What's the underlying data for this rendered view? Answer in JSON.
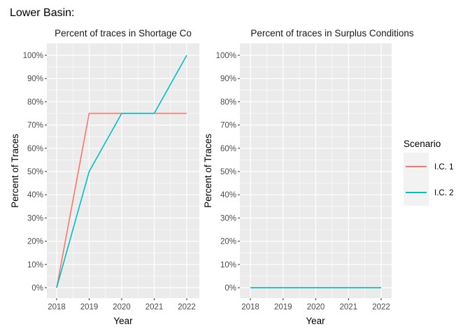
{
  "page_title": "Lower Basin:",
  "legend": {
    "title": "Scenario",
    "items": [
      {
        "label": "I.C. 1",
        "color": "#f8766d"
      },
      {
        "label": "I.C. 2",
        "color": "#00bfc4"
      }
    ]
  },
  "chart_data": [
    {
      "type": "line",
      "title": "Percent of traces in Shortage Co",
      "xlabel": "Year",
      "ylabel": "Percent of Traces",
      "x": [
        "2018",
        "2019",
        "2020",
        "2021",
        "2022"
      ],
      "xticks": [
        "2018",
        "2019",
        "2020",
        "2021",
        "2022"
      ],
      "yticks": [
        "0%",
        "10%",
        "20%",
        "30%",
        "40%",
        "50%",
        "60%",
        "70%",
        "80%",
        "90%",
        "100%"
      ],
      "ylim": [
        0,
        100
      ],
      "grid": true,
      "series": [
        {
          "name": "I.C. 1",
          "color": "#f8766d",
          "values": [
            0,
            75,
            75,
            75,
            75
          ]
        },
        {
          "name": "I.C. 2",
          "color": "#00bfc4",
          "values": [
            0,
            50,
            75,
            75,
            100
          ]
        }
      ]
    },
    {
      "type": "line",
      "title": "Percent of traces in Surplus Conditions",
      "xlabel": "Year",
      "ylabel": "Percent of Traces",
      "x": [
        "2018",
        "2019",
        "2020",
        "2021",
        "2022"
      ],
      "xticks": [
        "2018",
        "2019",
        "2020",
        "2021",
        "2022"
      ],
      "yticks": [
        "0%",
        "10%",
        "20%",
        "30%",
        "40%",
        "50%",
        "60%",
        "70%",
        "80%",
        "90%",
        "100%"
      ],
      "ylim": [
        0,
        100
      ],
      "grid": true,
      "series": [
        {
          "name": "I.C. 1",
          "color": "#f8766d",
          "values": [
            0,
            0,
            0,
            0,
            0
          ]
        },
        {
          "name": "I.C. 2",
          "color": "#00bfc4",
          "values": [
            0,
            0,
            0,
            0,
            0
          ]
        }
      ]
    }
  ]
}
